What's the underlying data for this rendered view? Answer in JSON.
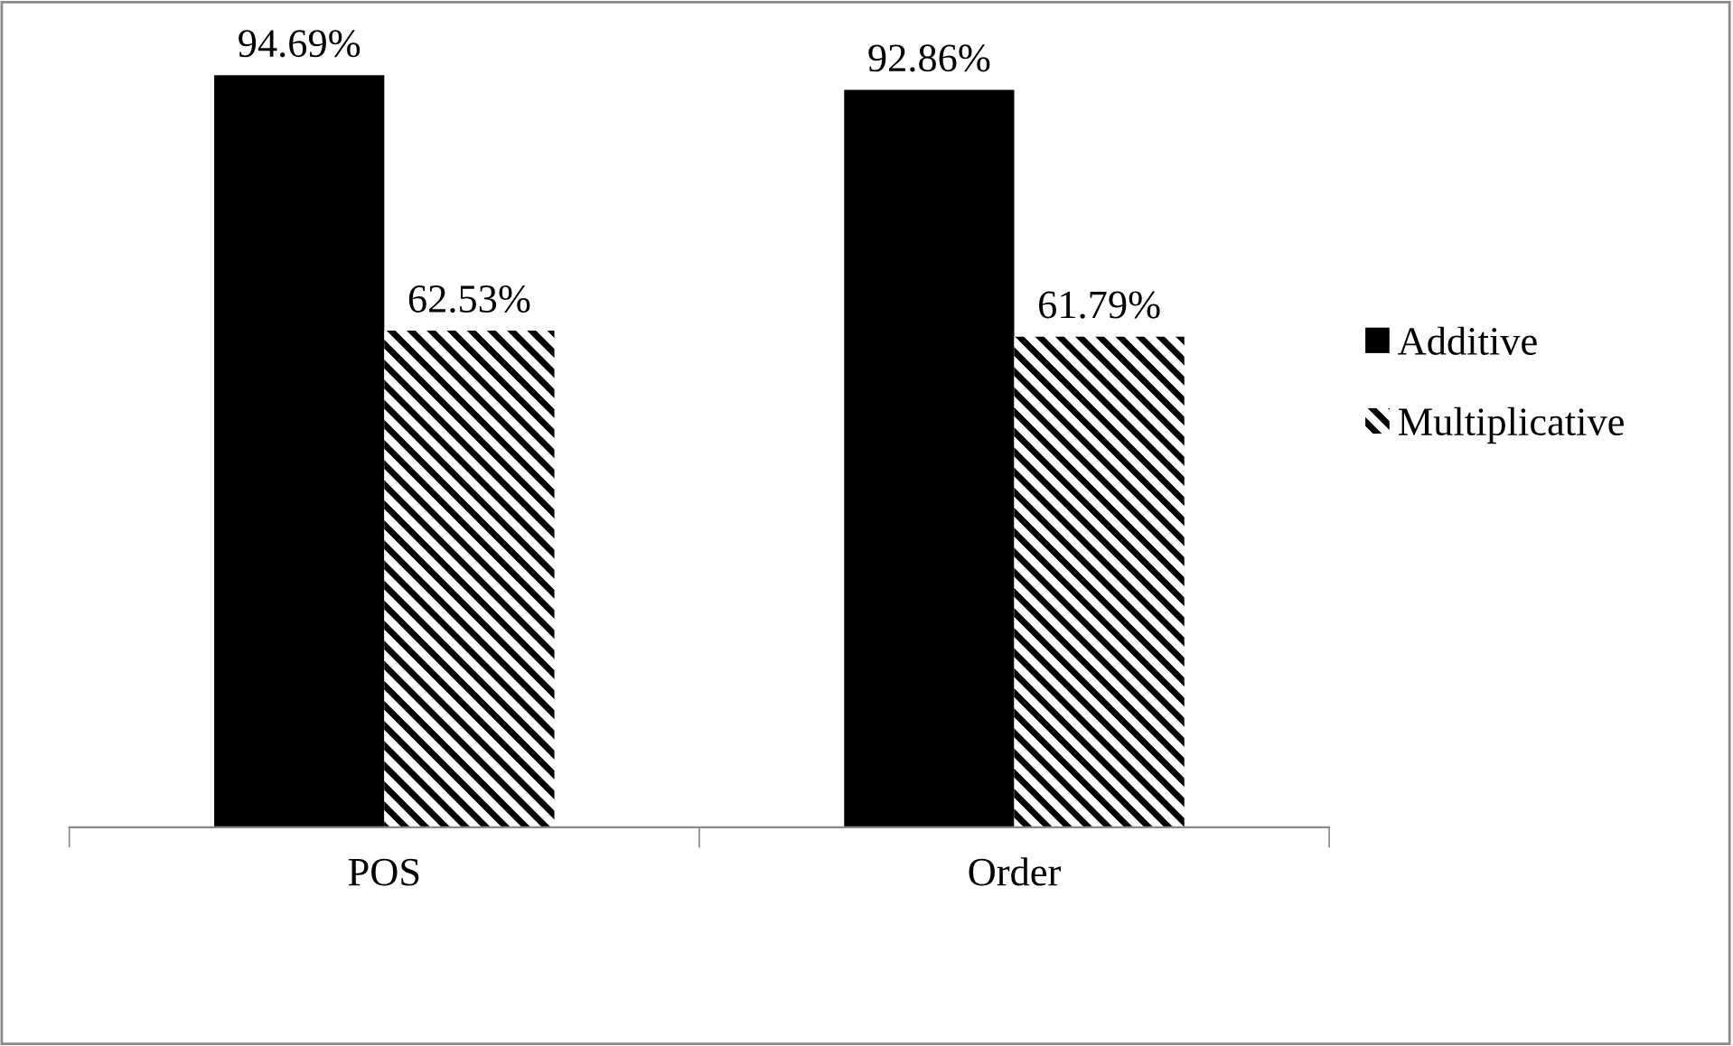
{
  "chart_data": {
    "type": "bar",
    "categories": [
      "POS",
      "Order"
    ],
    "series": [
      {
        "name": "Additive",
        "color": "#000000",
        "values": [
          94.69,
          92.86
        ],
        "value_labels": [
          "94.69%",
          "92.86%"
        ]
      },
      {
        "name": "Multiplicative",
        "color": "#000000",
        "values": [
          62.53,
          61.79
        ],
        "value_labels": [
          "62.53%",
          "61.79%"
        ]
      }
    ],
    "legend": "right",
    "grid": false
  }
}
